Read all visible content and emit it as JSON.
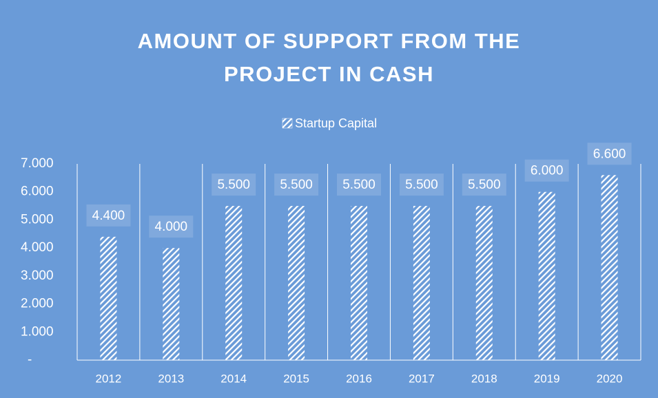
{
  "chart_data": {
    "type": "bar",
    "title": "AMOUNT OF SUPPORT FROM THE PROJECT IN CASH",
    "categories": [
      "2012",
      "2013",
      "2014",
      "2015",
      "2016",
      "2017",
      "2018",
      "2019",
      "2020"
    ],
    "series": [
      {
        "name": "Startup Capital",
        "color": "#ffffff",
        "pattern": "hatch",
        "values": [
          4400,
          4000,
          5500,
          5500,
          5500,
          5500,
          5500,
          6000,
          6600
        ],
        "value_labels": [
          "4.400",
          "4.000",
          "5.500",
          "5.500",
          "5.500",
          "5.500",
          "5.500",
          "6.000",
          "6.600"
        ]
      }
    ],
    "ylim": [
      0,
      7000
    ],
    "yticks": [
      {
        "value": 0,
        "label": "-"
      },
      {
        "value": 1000,
        "label": "1.000"
      },
      {
        "value": 2000,
        "label": "2.000"
      },
      {
        "value": 3000,
        "label": "3.000"
      },
      {
        "value": 4000,
        "label": "4.000"
      },
      {
        "value": 5000,
        "label": "5.000"
      },
      {
        "value": 6000,
        "label": "6.000"
      },
      {
        "value": 7000,
        "label": "7.000"
      }
    ],
    "legend": "top"
  }
}
